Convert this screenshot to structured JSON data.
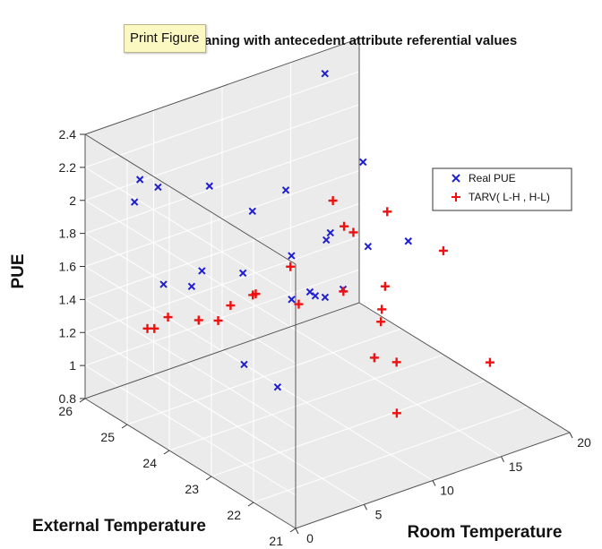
{
  "tooltip": {
    "label": "Print Figure"
  },
  "chart_data": {
    "type": "scatter",
    "title": "PUE Traning with antecedent attribute referential values",
    "xlabel": "Room Temperature",
    "ylabel": "External Temperature",
    "zlabel": "PUE",
    "xlim": [
      0,
      20
    ],
    "ylim": [
      21,
      26
    ],
    "zlim": [
      0.8,
      2.4
    ],
    "xticks": [
      "0",
      "5",
      "10",
      "15",
      "20"
    ],
    "yticks": [
      "21",
      "22",
      "23",
      "24",
      "25",
      "26"
    ],
    "zticks": [
      "0.8",
      "1",
      "1.2",
      "1.4",
      "1.6",
      "1.8",
      "2",
      "2.2",
      "2.4"
    ],
    "grid": true,
    "legend_position": "top-right",
    "colors": {
      "real": "#1f1fd0",
      "tarv": "#ee1111"
    },
    "series": [
      {
        "name": "Real PUE",
        "marker": "x",
        "points": [
          [
            4.0,
            26.0,
            2.01
          ],
          [
            3.3,
            25.9,
            1.91
          ],
          [
            4.4,
            25.7,
            2.0
          ],
          [
            6.0,
            25.0,
            2.07
          ],
          [
            7.6,
            24.5,
            1.95
          ],
          [
            8.5,
            24.0,
            2.13
          ],
          [
            9.6,
            23.3,
            1.95
          ],
          [
            10.2,
            22.6,
            1.96
          ],
          [
            11.6,
            22.1,
            2.03
          ],
          [
            4.7,
            25.0,
            1.5
          ],
          [
            6.6,
            24.4,
            1.62
          ],
          [
            8.3,
            23.8,
            1.77
          ],
          [
            8.0,
            23.7,
            1.53
          ],
          [
            7.6,
            25.7,
            1.4
          ],
          [
            7.8,
            23.2,
            1.66
          ],
          [
            8.5,
            23.3,
            1.6
          ],
          [
            8.6,
            23.1,
            1.62
          ],
          [
            9.3,
            22.9,
            1.68
          ],
          [
            4.8,
            25.7,
            1.4
          ],
          [
            3.0,
            23.2,
            1.36
          ],
          [
            3.6,
            22.6,
            1.3
          ],
          [
            17.5,
            26.0,
            2.26
          ],
          [
            12.6,
            23.5,
            2.26
          ],
          [
            5.0,
            21.9,
            2.26
          ],
          [
            19.2,
            22.4,
            2.08
          ]
        ]
      },
      {
        "name": "TARV( L-H , H-L)",
        "marker": "+",
        "points": [
          [
            2.7,
            25.4,
            1.24
          ],
          [
            2.9,
            25.3,
            1.25
          ],
          [
            3.9,
            25.3,
            1.29
          ],
          [
            4.6,
            24.8,
            1.33
          ],
          [
            5.1,
            24.5,
            1.36
          ],
          [
            5.7,
            24.4,
            1.45
          ],
          [
            6.4,
            24.1,
            1.54
          ],
          [
            7.6,
            23.4,
            1.56
          ],
          [
            6.0,
            23.9,
            1.59
          ],
          [
            8.2,
            21.8,
            1.47
          ],
          [
            8.9,
            21.5,
            1.47
          ],
          [
            8.3,
            21.3,
            1.21
          ],
          [
            9.6,
            22.1,
            1.6
          ],
          [
            7.3,
            23.5,
            1.78
          ],
          [
            8.4,
            22.6,
            1.74
          ],
          [
            9.6,
            22.0,
            1.83
          ],
          [
            10.6,
            23.3,
            1.96
          ],
          [
            10.4,
            23.5,
            2.09
          ],
          [
            11.6,
            22.6,
            2.13
          ],
          [
            11.2,
            22.6,
            1.55
          ],
          [
            12.2,
            23.6,
            1.83
          ],
          [
            15.1,
            21.3,
            1.32
          ],
          [
            16.0,
            22.7,
            1.75
          ],
          [
            19.2,
            22.1,
            2.06
          ]
        ]
      }
    ]
  }
}
